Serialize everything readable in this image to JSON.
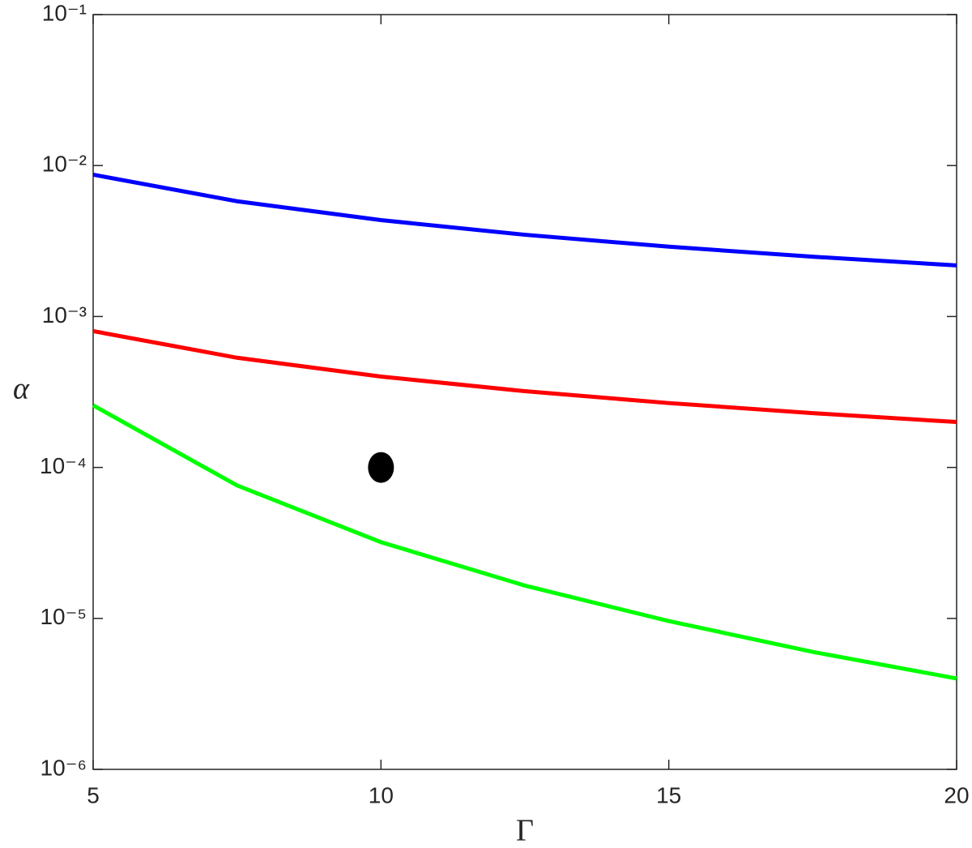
{
  "chart_data": {
    "type": "line",
    "x_label": "Γ",
    "y_label": "α",
    "x": [
      5,
      7.5,
      10,
      12.5,
      15,
      17.5,
      20
    ],
    "series": [
      {
        "color": "#0000ff",
        "values": [
          0.0087,
          0.0058,
          0.00435,
          0.00348,
          0.0029,
          0.00249,
          0.00218
        ]
      },
      {
        "color": "#ff0000",
        "values": [
          0.0008,
          0.000533,
          0.0004,
          0.00032,
          0.000267,
          0.000229,
          0.0002
        ]
      },
      {
        "color": "#00ff00",
        "values": [
          0.000258,
          7.6e-05,
          3.2e-05,
          1.65e-05,
          9.6e-06,
          6e-06,
          4e-06
        ]
      }
    ],
    "points": [
      {
        "x": 10,
        "y": 0.0001,
        "color": "#000000"
      }
    ],
    "xlim": [
      5,
      20
    ],
    "xticks": [
      5,
      10,
      15,
      20
    ],
    "ylim": [
      1e-06,
      0.1
    ],
    "log_y": true,
    "yticks": [
      {
        "value": 1e-06,
        "label": "10⁻⁶"
      },
      {
        "value": 1e-05,
        "label": "10⁻⁵"
      },
      {
        "value": 0.0001,
        "label": "10⁻⁴"
      },
      {
        "value": 0.001,
        "label": "10⁻³"
      },
      {
        "value": 0.01,
        "label": "10⁻²"
      },
      {
        "value": 0.1,
        "label": "10⁻¹"
      }
    ],
    "grid": false
  }
}
